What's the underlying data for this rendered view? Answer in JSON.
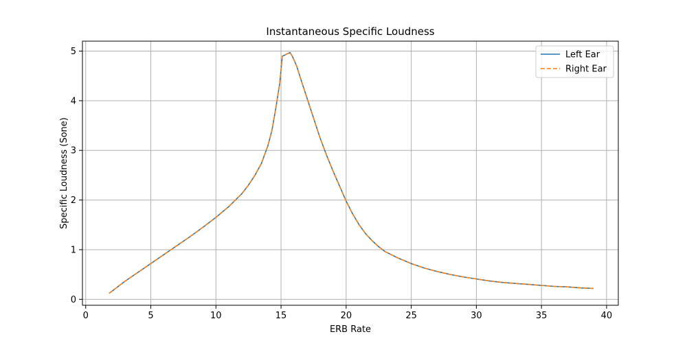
{
  "chart_data": {
    "type": "line",
    "title": "Instantaneous Specific Loudness",
    "xlabel": "ERB Rate",
    "ylabel": "Specific Loudness (Sone)",
    "xlim": [
      -0.25,
      40.9
    ],
    "ylim": [
      -0.12,
      5.2
    ],
    "xticks": [
      0,
      5,
      10,
      15,
      20,
      25,
      30,
      35,
      40
    ],
    "yticks": [
      0,
      1,
      2,
      3,
      4,
      5
    ],
    "grid": true,
    "legend_position": "top-right",
    "series": [
      {
        "name": "Left Ear",
        "color": "#1f77b4",
        "style": "solid",
        "x": [
          1.8,
          2.2,
          2.6,
          3.0,
          3.5,
          4.0,
          5.0,
          6.0,
          7.0,
          8.0,
          9.0,
          10.0,
          11.0,
          12.0,
          12.5,
          13.0,
          13.5,
          14.0,
          14.3,
          14.6,
          14.9,
          15.1,
          15.3,
          15.5,
          15.7,
          15.9,
          16.2,
          16.5,
          17.0,
          17.5,
          18.0,
          18.5,
          19.0,
          19.5,
          20.0,
          20.5,
          21.0,
          21.5,
          22.0,
          22.5,
          23.0,
          24.0,
          25.0,
          26.0,
          27.0,
          28.0,
          29.0,
          30.0,
          31.0,
          32.0,
          33.0,
          34.0,
          35.0,
          36.0,
          37.0,
          38.0,
          39.0
        ],
        "y": [
          0.12,
          0.2,
          0.28,
          0.36,
          0.45,
          0.54,
          0.72,
          0.9,
          1.08,
          1.26,
          1.45,
          1.65,
          1.87,
          2.13,
          2.3,
          2.5,
          2.74,
          3.1,
          3.4,
          3.85,
          4.35,
          4.9,
          4.92,
          4.95,
          4.97,
          4.88,
          4.7,
          4.45,
          4.05,
          3.65,
          3.25,
          2.9,
          2.58,
          2.28,
          1.98,
          1.72,
          1.5,
          1.32,
          1.18,
          1.06,
          0.96,
          0.83,
          0.72,
          0.63,
          0.56,
          0.5,
          0.45,
          0.41,
          0.37,
          0.34,
          0.32,
          0.3,
          0.28,
          0.26,
          0.25,
          0.23,
          0.22
        ]
      },
      {
        "name": "Right Ear",
        "color": "#ff7f0e",
        "style": "dashed",
        "x": [
          1.8,
          2.2,
          2.6,
          3.0,
          3.5,
          4.0,
          5.0,
          6.0,
          7.0,
          8.0,
          9.0,
          10.0,
          11.0,
          12.0,
          12.5,
          13.0,
          13.5,
          14.0,
          14.3,
          14.6,
          14.9,
          15.1,
          15.3,
          15.5,
          15.7,
          15.9,
          16.2,
          16.5,
          17.0,
          17.5,
          18.0,
          18.5,
          19.0,
          19.5,
          20.0,
          20.5,
          21.0,
          21.5,
          22.0,
          22.5,
          23.0,
          24.0,
          25.0,
          26.0,
          27.0,
          28.0,
          29.0,
          30.0,
          31.0,
          32.0,
          33.0,
          34.0,
          35.0,
          36.0,
          37.0,
          38.0,
          39.0
        ],
        "y": [
          0.12,
          0.2,
          0.28,
          0.36,
          0.45,
          0.54,
          0.72,
          0.9,
          1.08,
          1.26,
          1.45,
          1.65,
          1.87,
          2.13,
          2.3,
          2.5,
          2.74,
          3.1,
          3.4,
          3.85,
          4.35,
          4.9,
          4.92,
          4.95,
          4.97,
          4.88,
          4.7,
          4.45,
          4.05,
          3.65,
          3.25,
          2.9,
          2.58,
          2.28,
          1.98,
          1.72,
          1.5,
          1.32,
          1.18,
          1.06,
          0.96,
          0.83,
          0.72,
          0.63,
          0.56,
          0.5,
          0.45,
          0.41,
          0.37,
          0.34,
          0.32,
          0.3,
          0.28,
          0.26,
          0.25,
          0.23,
          0.22
        ]
      }
    ]
  }
}
